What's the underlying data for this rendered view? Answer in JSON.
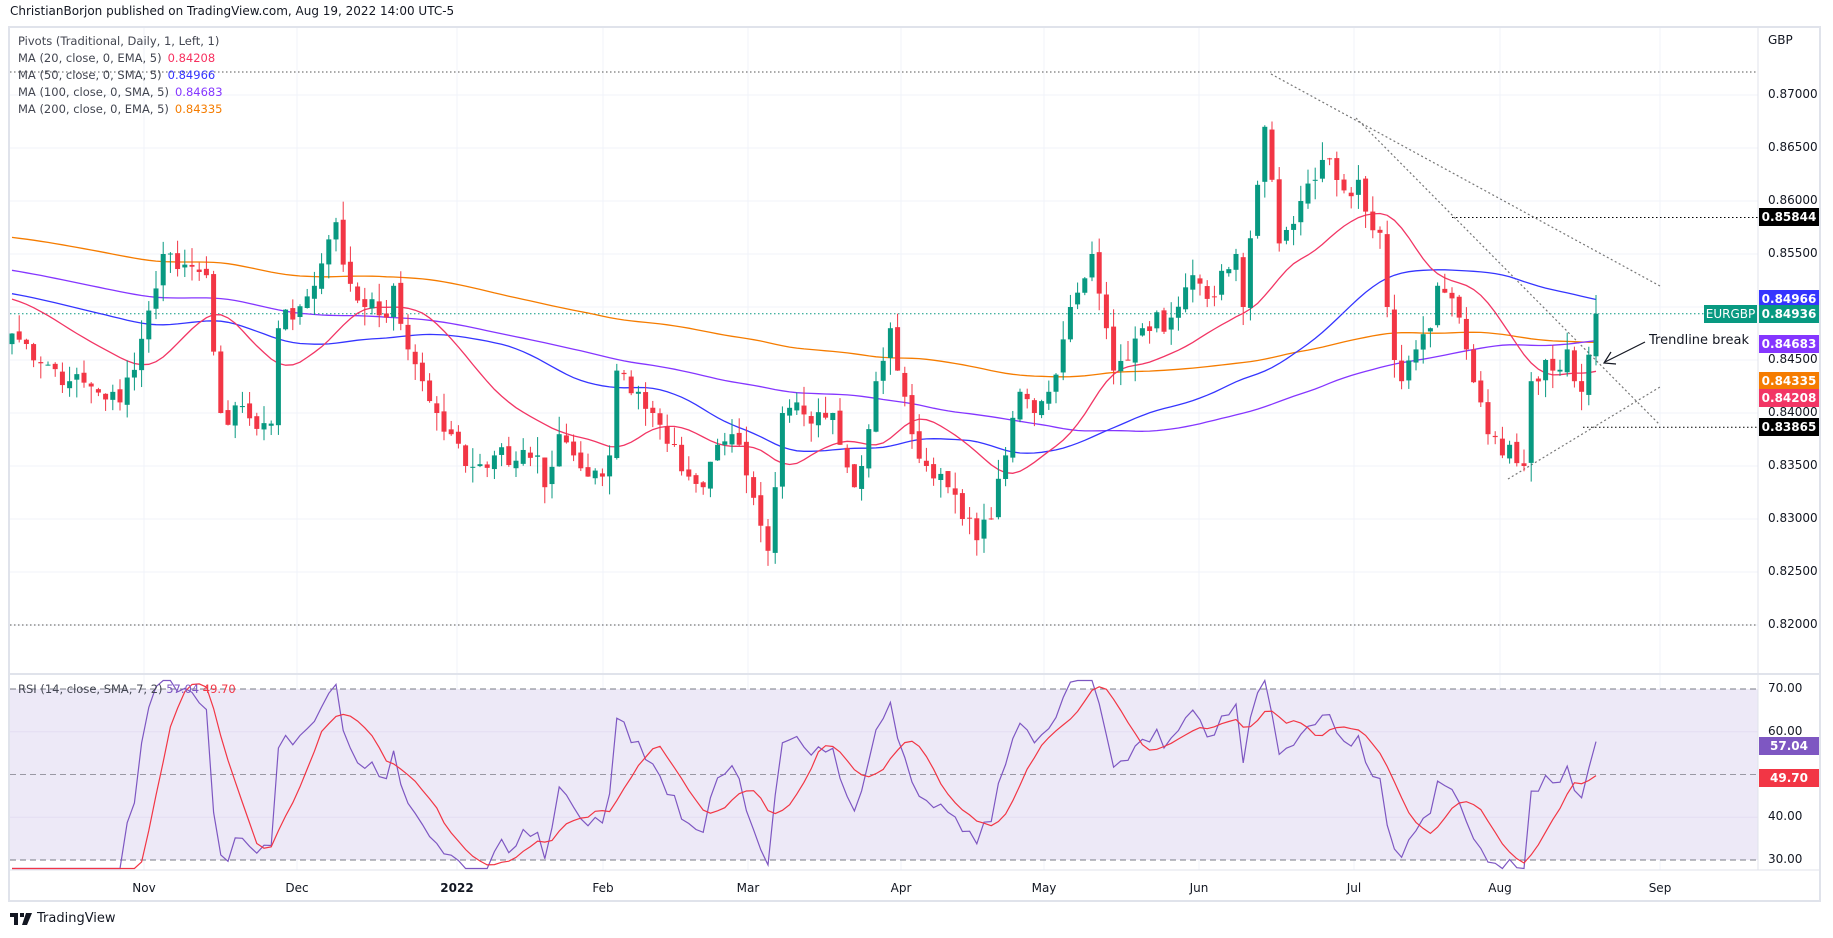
{
  "header": {
    "published": "ChristianBorjon published on TradingView.com, Aug 19, 2022 14:00 UTC-5"
  },
  "legend": [
    {
      "label": "Pivots (Traditional, Daily, 1, Left, 1)",
      "value": "",
      "color": "#434651"
    },
    {
      "label": "MA (20, close, 0, EMA, 5)",
      "value": "0.84208",
      "color": "#f7305f"
    },
    {
      "label": "MA (50, close, 0, SMA, 5)",
      "value": "0.84966",
      "color": "#3535ff"
    },
    {
      "label": "MA (100, close, 0, SMA, 5)",
      "value": "0.84683",
      "color": "#8536ff"
    },
    {
      "label": "MA (200, close, 0, EMA, 5)",
      "value": "0.84335",
      "color": "#f57c00"
    }
  ],
  "price_axis": {
    "currency": "GBP",
    "labels": [
      "0.87000",
      "0.86500",
      "0.86000",
      "0.85500",
      "0.84500",
      "0.84000",
      "0.83500",
      "0.83000",
      "0.82500",
      "0.82000"
    ],
    "badges": [
      {
        "name": "pivot-high",
        "text": "0.85844",
        "color": "#000000"
      },
      {
        "name": "ma50",
        "text": "0.84966",
        "color": "#3535ff"
      },
      {
        "name": "last-price",
        "text": "0.84936",
        "color": "#089981"
      },
      {
        "name": "ma100",
        "text": "0.84683",
        "color": "#8536ff"
      },
      {
        "name": "ma200",
        "text": "0.84335",
        "color": "#f57c00"
      },
      {
        "name": "ma20",
        "text": "0.84208",
        "color": "#f23665"
      },
      {
        "name": "pivot-low",
        "text": "0.83865",
        "color": "#000000"
      }
    ],
    "symbol_badge": "EURGBP"
  },
  "annotation": {
    "text": "Trendline break"
  },
  "rsi": {
    "legend": "RSI (14, close, SMA, 7, 2)",
    "value": "57.04",
    "signal": "49.70",
    "labels": [
      "70.00",
      "60.00",
      "40.00",
      "30.00"
    ],
    "rsi_color": "#7e57c2",
    "signal_color": "#f23645"
  },
  "time_axis": {
    "labels": [
      "Nov",
      "Dec",
      "2022",
      "Feb",
      "Mar",
      "Apr",
      "May",
      "Jun",
      "Jul",
      "Aug",
      "Sep"
    ]
  },
  "branding": {
    "logo_text": "TradingView"
  },
  "chart_data": {
    "type": "candlestick",
    "symbol": "EURGBP",
    "timeframe": "Daily",
    "ylim": [
      0.8175,
      0.8765
    ],
    "note": "Approximate daily closes as [bar_index, close] keypoints, bar 0 ≈ early Oct 2021, bar 220 = Aug 19 2022",
    "close_keypoints": [
      [
        0,
        0.8475
      ],
      [
        8,
        0.843
      ],
      [
        11,
        0.8425
      ],
      [
        15,
        0.841
      ],
      [
        18,
        0.847
      ],
      [
        21,
        0.855
      ],
      [
        24,
        0.854
      ],
      [
        27,
        0.853
      ],
      [
        29,
        0.84
      ],
      [
        33,
        0.8395
      ],
      [
        36,
        0.839
      ],
      [
        37,
        0.848
      ],
      [
        41,
        0.851
      ],
      [
        42,
        0.852
      ],
      [
        45,
        0.858
      ],
      [
        46,
        0.854
      ],
      [
        49,
        0.85
      ],
      [
        52,
        0.849
      ],
      [
        53,
        0.852
      ],
      [
        55,
        0.846
      ],
      [
        57,
        0.843
      ],
      [
        59,
        0.84
      ],
      [
        61,
        0.838
      ],
      [
        63,
        0.835
      ],
      [
        67,
        0.836
      ],
      [
        70,
        0.8355
      ],
      [
        73,
        0.836
      ],
      [
        74,
        0.833
      ],
      [
        76,
        0.838
      ],
      [
        78,
        0.836
      ],
      [
        80,
        0.834
      ],
      [
        82,
        0.834
      ],
      [
        83,
        0.836
      ],
      [
        84,
        0.844
      ],
      [
        87,
        0.842
      ],
      [
        89,
        0.84
      ],
      [
        92,
        0.837
      ],
      [
        94,
        0.834
      ],
      [
        96,
        0.833
      ],
      [
        98,
        0.837
      ],
      [
        101,
        0.837
      ],
      [
        103,
        0.832
      ],
      [
        105,
        0.827
      ],
      [
        106,
        0.833
      ],
      [
        107,
        0.84
      ],
      [
        109,
        0.841
      ],
      [
        111,
        0.839
      ],
      [
        114,
        0.84
      ],
      [
        115,
        0.837
      ],
      [
        117,
        0.833
      ],
      [
        118,
        0.835
      ],
      [
        120,
        0.843
      ],
      [
        122,
        0.848
      ],
      [
        123,
        0.844
      ],
      [
        125,
        0.838
      ],
      [
        127,
        0.835
      ],
      [
        130,
        0.833
      ],
      [
        132,
        0.83
      ],
      [
        134,
        0.828
      ],
      [
        136,
        0.83
      ],
      [
        138,
        0.836
      ],
      [
        140,
        0.842
      ],
      [
        142,
        0.84
      ],
      [
        144,
        0.842
      ],
      [
        147,
        0.85
      ],
      [
        150,
        0.855
      ],
      [
        152,
        0.848
      ],
      [
        153,
        0.844
      ],
      [
        155,
        0.845
      ],
      [
        157,
        0.848
      ],
      [
        161,
        0.849
      ],
      [
        164,
        0.853
      ],
      [
        167,
        0.851
      ],
      [
        170,
        0.855
      ],
      [
        171,
        0.85
      ],
      [
        174,
        0.867
      ],
      [
        175,
        0.862
      ],
      [
        176,
        0.856
      ],
      [
        179,
        0.86
      ],
      [
        181,
        0.862
      ],
      [
        183,
        0.864
      ],
      [
        185,
        0.861
      ],
      [
        187,
        0.862
      ],
      [
        188,
        0.859
      ],
      [
        190,
        0.857
      ],
      [
        191,
        0.85
      ],
      [
        192,
        0.845
      ],
      [
        193,
        0.843
      ],
      [
        195,
        0.846
      ],
      [
        197,
        0.848
      ],
      [
        198,
        0.852
      ],
      [
        201,
        0.849
      ],
      [
        202,
        0.846
      ],
      [
        204,
        0.841
      ],
      [
        205,
        0.838
      ],
      [
        207,
        0.836
      ],
      [
        208,
        0.837
      ],
      [
        210,
        0.835
      ],
      [
        211,
        0.843
      ],
      [
        213,
        0.845
      ],
      [
        214,
        0.844
      ],
      [
        216,
        0.846
      ],
      [
        217,
        0.843
      ],
      [
        218,
        0.842
      ],
      [
        219,
        0.8455
      ],
      [
        220,
        0.84936
      ]
    ],
    "pivot_lines": {
      "high": 0.85844,
      "low": 0.83865,
      "top": 0.8717,
      "bottom": 0.82
    },
    "last_price": 0.84936,
    "rsi_range": [
      30,
      70
    ],
    "rsi_last": 57.04,
    "rsi_signal_last": 49.7
  }
}
